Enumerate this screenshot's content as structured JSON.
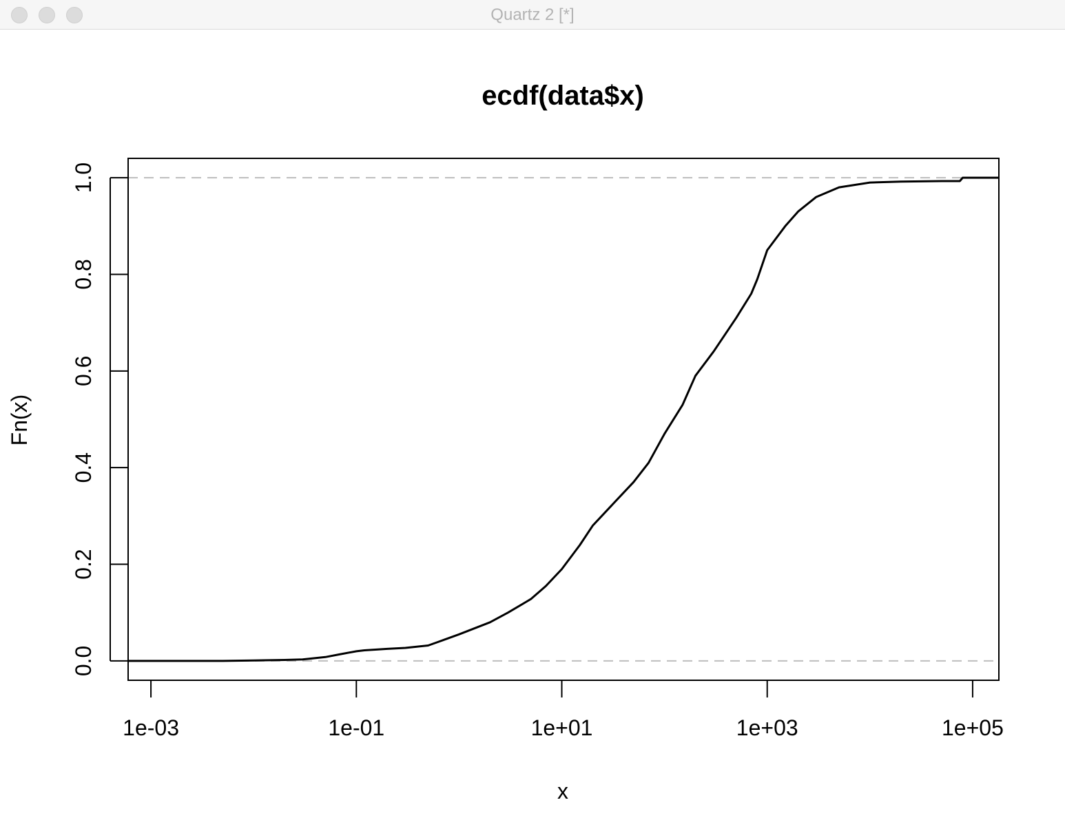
{
  "window": {
    "title": "Quartz 2 [*]",
    "buttons": [
      "close",
      "minimize",
      "zoom"
    ]
  },
  "chart_data": {
    "type": "line",
    "title": "ecdf(data$x)",
    "xlabel": "x",
    "ylabel": "Fn(x)",
    "x_scale": "log10",
    "xlim": [
      0.0006,
      180000
    ],
    "ylim": [
      -0.04,
      1.04
    ],
    "x_ticks": [
      0.001,
      0.1,
      10,
      1000,
      100000
    ],
    "x_tick_labels": [
      "1e-03",
      "1e-01",
      "1e+01",
      "1e+03",
      "1e+05"
    ],
    "y_ticks": [
      0,
      0.2,
      0.4,
      0.6,
      0.8,
      1
    ],
    "y_tick_labels": [
      "0.0",
      "0.2",
      "0.4",
      "0.6",
      "0.8",
      "1.0"
    ],
    "hlines": [
      0,
      1
    ],
    "hline_style": "dashed",
    "hline_color": "#bdbdbd",
    "line_color": "#000000",
    "grid": false,
    "series": [
      {
        "x": [
          0.0006,
          0.001,
          0.005,
          0.01,
          0.02,
          0.03,
          0.05,
          0.07,
          0.1,
          0.12,
          0.2,
          0.3,
          0.5,
          0.7,
          1,
          2,
          3,
          5,
          7,
          10,
          15,
          20,
          30,
          50,
          70,
          100,
          150,
          200,
          300,
          500,
          700,
          800,
          1000,
          1500,
          2000,
          3000,
          5000,
          10000,
          20000,
          50000,
          75000,
          80000,
          100000,
          180000
        ],
        "y": [
          0,
          0,
          0,
          0.001,
          0.002,
          0.003,
          0.008,
          0.014,
          0.02,
          0.022,
          0.025,
          0.027,
          0.032,
          0.043,
          0.055,
          0.08,
          0.1,
          0.128,
          0.155,
          0.19,
          0.24,
          0.28,
          0.32,
          0.37,
          0.41,
          0.47,
          0.53,
          0.59,
          0.64,
          0.71,
          0.76,
          0.79,
          0.85,
          0.9,
          0.93,
          0.96,
          0.98,
          0.99,
          0.992,
          0.993,
          0.993,
          1,
          1,
          1
        ]
      }
    ]
  }
}
